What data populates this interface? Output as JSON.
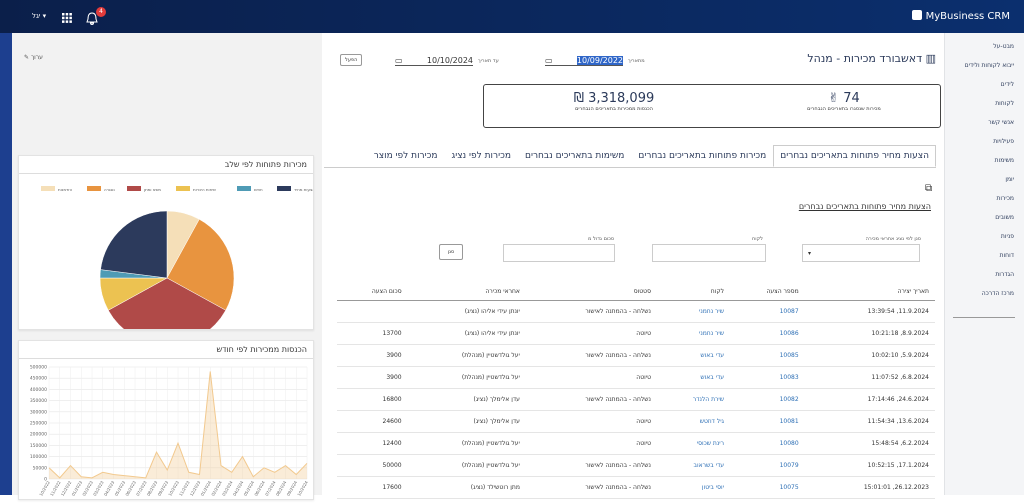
{
  "topbar": {
    "brand": "MyBusiness CRM",
    "user": "יגל",
    "notifications": 4
  },
  "sidebar": [
    "מבט-על",
    "ייבוא לקוחות ולידים",
    "לידים",
    "לקוחות",
    "אנשי קשר",
    "פעילויות",
    "משימות",
    "יומן",
    "מכירות",
    "משובים",
    "פניות",
    "דוחות",
    "הגדרות",
    "מרכז הדרכה"
  ],
  "header": {
    "title": "דאשבורד מכירות - מנהל",
    "from_label": "מתאריך",
    "from_date": "10/09/2022",
    "to_label": "עד תאריך",
    "to_date": "10/10/2024",
    "apply": "הפעל",
    "edit": "ערוך"
  },
  "kpis": [
    {
      "value": 74,
      "label": "מכירות שנסגרו בתאריכים הנבחרים"
    },
    {
      "currency": "₪",
      "value": "3,318,099",
      "label": "הכנסות ממכירות בתאריכים הנבחרים"
    }
  ],
  "tabs": [
    "הצעות מחיר פתוחות בתאריכים נבחרים",
    "מכירות פתוחות בתאריכים נבחרים",
    "משימות בתאריכים נבחרים",
    "מכירות לפי נציג",
    "מכירות לפי מוצר"
  ],
  "section_title": "הצעות מחיר פתוחות בתאריכים נבחרים",
  "filters": {
    "rep": "סנן לפי נציג אחראי מכירה",
    "customer": "לקוח",
    "amount": "סכום גדול מ",
    "button": "סנן"
  },
  "table": {
    "headers": [
      "תאריך יצירה",
      "מספר הצעה",
      "לקוח",
      "סטטוס",
      "אחראי מכירה",
      "סכום הצעה"
    ],
    "rows": [
      [
        "11.9.2024, 13:39:54",
        10087,
        "שיר נחמני",
        "נשלחה - בהמתנה לאישור",
        "יונתן עידי אליהו (נציג)",
        null
      ],
      [
        "8.9.2024, 10:21:18",
        10086,
        "שיר נחמני",
        "טיוטה",
        "יונתן עידי אליהו (נציג)",
        13700
      ],
      [
        "5.9.2024, 10:02:10",
        10085,
        "עדי באוש",
        "נשלחה - בהמתנה לאישור",
        "יעל גולדשטיין (מנהלת)",
        3900
      ],
      [
        "6.8.2024, 11:07:52",
        10083,
        "עדי באוש",
        "טיוטה",
        "יעל גולדשטיין (מנהלת)",
        3900
      ],
      [
        "24.6.2024, 17:14:46",
        10082,
        "שירת הלנדר",
        "נשלחה - בהמתנה לאישור",
        "עדן אלימלך (נציג)",
        16800
      ],
      [
        "13.6.2024, 11:54:34",
        10081,
        "גיל דוזטש",
        "טיוטה",
        "עדן אלימלך (נציג)",
        24600
      ],
      [
        "6.2.2024, 15:48:54",
        10080,
        "רינת שכוסי",
        "טיוטה",
        "יעל גולדשטיין (מנהלת)",
        12400
      ],
      [
        "17.1.2024, 10:52:15",
        10079,
        "עדי בשראוב",
        "נשלחה - בהמתנה לאישור",
        "יעל גולדשטיין (מנהלת)",
        50000
      ],
      [
        "26.12.2023, 15:01:01",
        10075,
        "יוסי ביטון",
        "נשלחה - בהמתנה לאישור",
        "מתן רוטשילד (נציג)",
        17600
      ]
    ]
  },
  "chart_data": [
    {
      "type": "pie",
      "title": "מכירות פתוחות לפי שלב",
      "categories": [
        "הזדמנות",
        "נסגרה",
        "משא ומתן",
        "שיחות היכרות",
        "חוזים",
        "הצעות מחיר"
      ],
      "values": [
        8,
        25,
        34,
        8,
        2,
        23
      ],
      "colors": [
        "#f5dfb8",
        "#e8943f",
        "#b04a48",
        "#ecc251",
        "#4f9bb5",
        "#2c3a5c"
      ]
    },
    {
      "type": "line",
      "title": "הכנסות ממכירות לפי חודש",
      "color": "#f2c98e",
      "x": [
        "10/2022",
        "11/2022",
        "12/2022",
        "01/2023",
        "02/2023",
        "03/2023",
        "04/2023",
        "05/2023",
        "06/2023",
        "07/2023",
        "08/2023",
        "09/2023",
        "10/2023",
        "11/2023",
        "12/2023",
        "01/2024",
        "02/2024",
        "03/2024",
        "04/2024",
        "05/2024",
        "06/2024",
        "07/2024",
        "08/2024",
        "09/2024",
        "10/2024"
      ],
      "values": [
        50000,
        5000,
        60000,
        10000,
        5000,
        30000,
        20000,
        15000,
        10000,
        5000,
        120000,
        40000,
        160000,
        30000,
        20000,
        480000,
        60000,
        30000,
        100000,
        10000,
        50000,
        30000,
        60000,
        20000,
        70000
      ],
      "ylim": [
        0,
        500000
      ],
      "yticks": [
        0,
        50000,
        100000,
        150000,
        200000,
        250000,
        300000,
        350000,
        400000,
        450000,
        500000
      ],
      "grid": true
    }
  ]
}
